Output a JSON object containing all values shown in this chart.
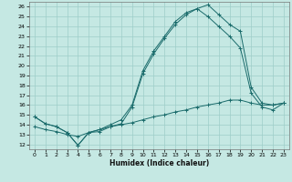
{
  "xlabel": "Humidex (Indice chaleur)",
  "xlim": [
    -0.5,
    23.5
  ],
  "ylim": [
    11.5,
    26.5
  ],
  "xticks": [
    0,
    1,
    2,
    3,
    4,
    5,
    6,
    7,
    8,
    9,
    10,
    11,
    12,
    13,
    14,
    15,
    16,
    17,
    18,
    19,
    20,
    21,
    22,
    23
  ],
  "yticks": [
    12,
    13,
    14,
    15,
    16,
    17,
    18,
    19,
    20,
    21,
    22,
    23,
    24,
    25,
    26
  ],
  "bg_color": "#c5e8e3",
  "grid_color": "#9ecdc8",
  "line_color": "#1a6b6b",
  "line1_x": [
    0,
    1,
    2,
    3,
    4,
    5,
    6,
    7,
    8,
    9,
    10,
    11,
    12,
    13,
    14,
    15,
    16,
    17,
    18,
    19,
    20,
    21,
    22,
    23
  ],
  "line1_y": [
    14.8,
    14.1,
    13.8,
    13.2,
    11.9,
    13.2,
    13.3,
    13.8,
    14.1,
    15.8,
    19.2,
    21.2,
    22.8,
    24.2,
    25.2,
    25.8,
    26.2,
    25.2,
    24.2,
    23.5,
    17.8,
    16.2,
    16.0,
    16.2
  ],
  "line2_x": [
    0,
    1,
    2,
    3,
    4,
    5,
    6,
    7,
    8,
    9,
    10,
    11,
    12,
    13,
    14,
    15,
    16,
    17,
    18,
    19,
    20,
    21,
    22,
    23
  ],
  "line2_y": [
    14.8,
    14.1,
    13.8,
    13.2,
    11.9,
    13.2,
    13.5,
    14.0,
    14.5,
    16.0,
    19.5,
    21.5,
    23.0,
    24.5,
    25.4,
    25.8,
    25.0,
    24.0,
    23.0,
    21.8,
    17.2,
    15.8,
    15.5,
    16.2
  ],
  "line3_x": [
    0,
    1,
    2,
    3,
    4,
    5,
    6,
    7,
    8,
    9,
    10,
    11,
    12,
    13,
    14,
    15,
    16,
    17,
    18,
    19,
    20,
    21,
    22,
    23
  ],
  "line3_y": [
    13.8,
    13.5,
    13.3,
    13.0,
    12.8,
    13.2,
    13.5,
    13.8,
    14.0,
    14.2,
    14.5,
    14.8,
    15.0,
    15.3,
    15.5,
    15.8,
    16.0,
    16.2,
    16.5,
    16.5,
    16.2,
    16.0,
    16.0,
    16.2
  ]
}
